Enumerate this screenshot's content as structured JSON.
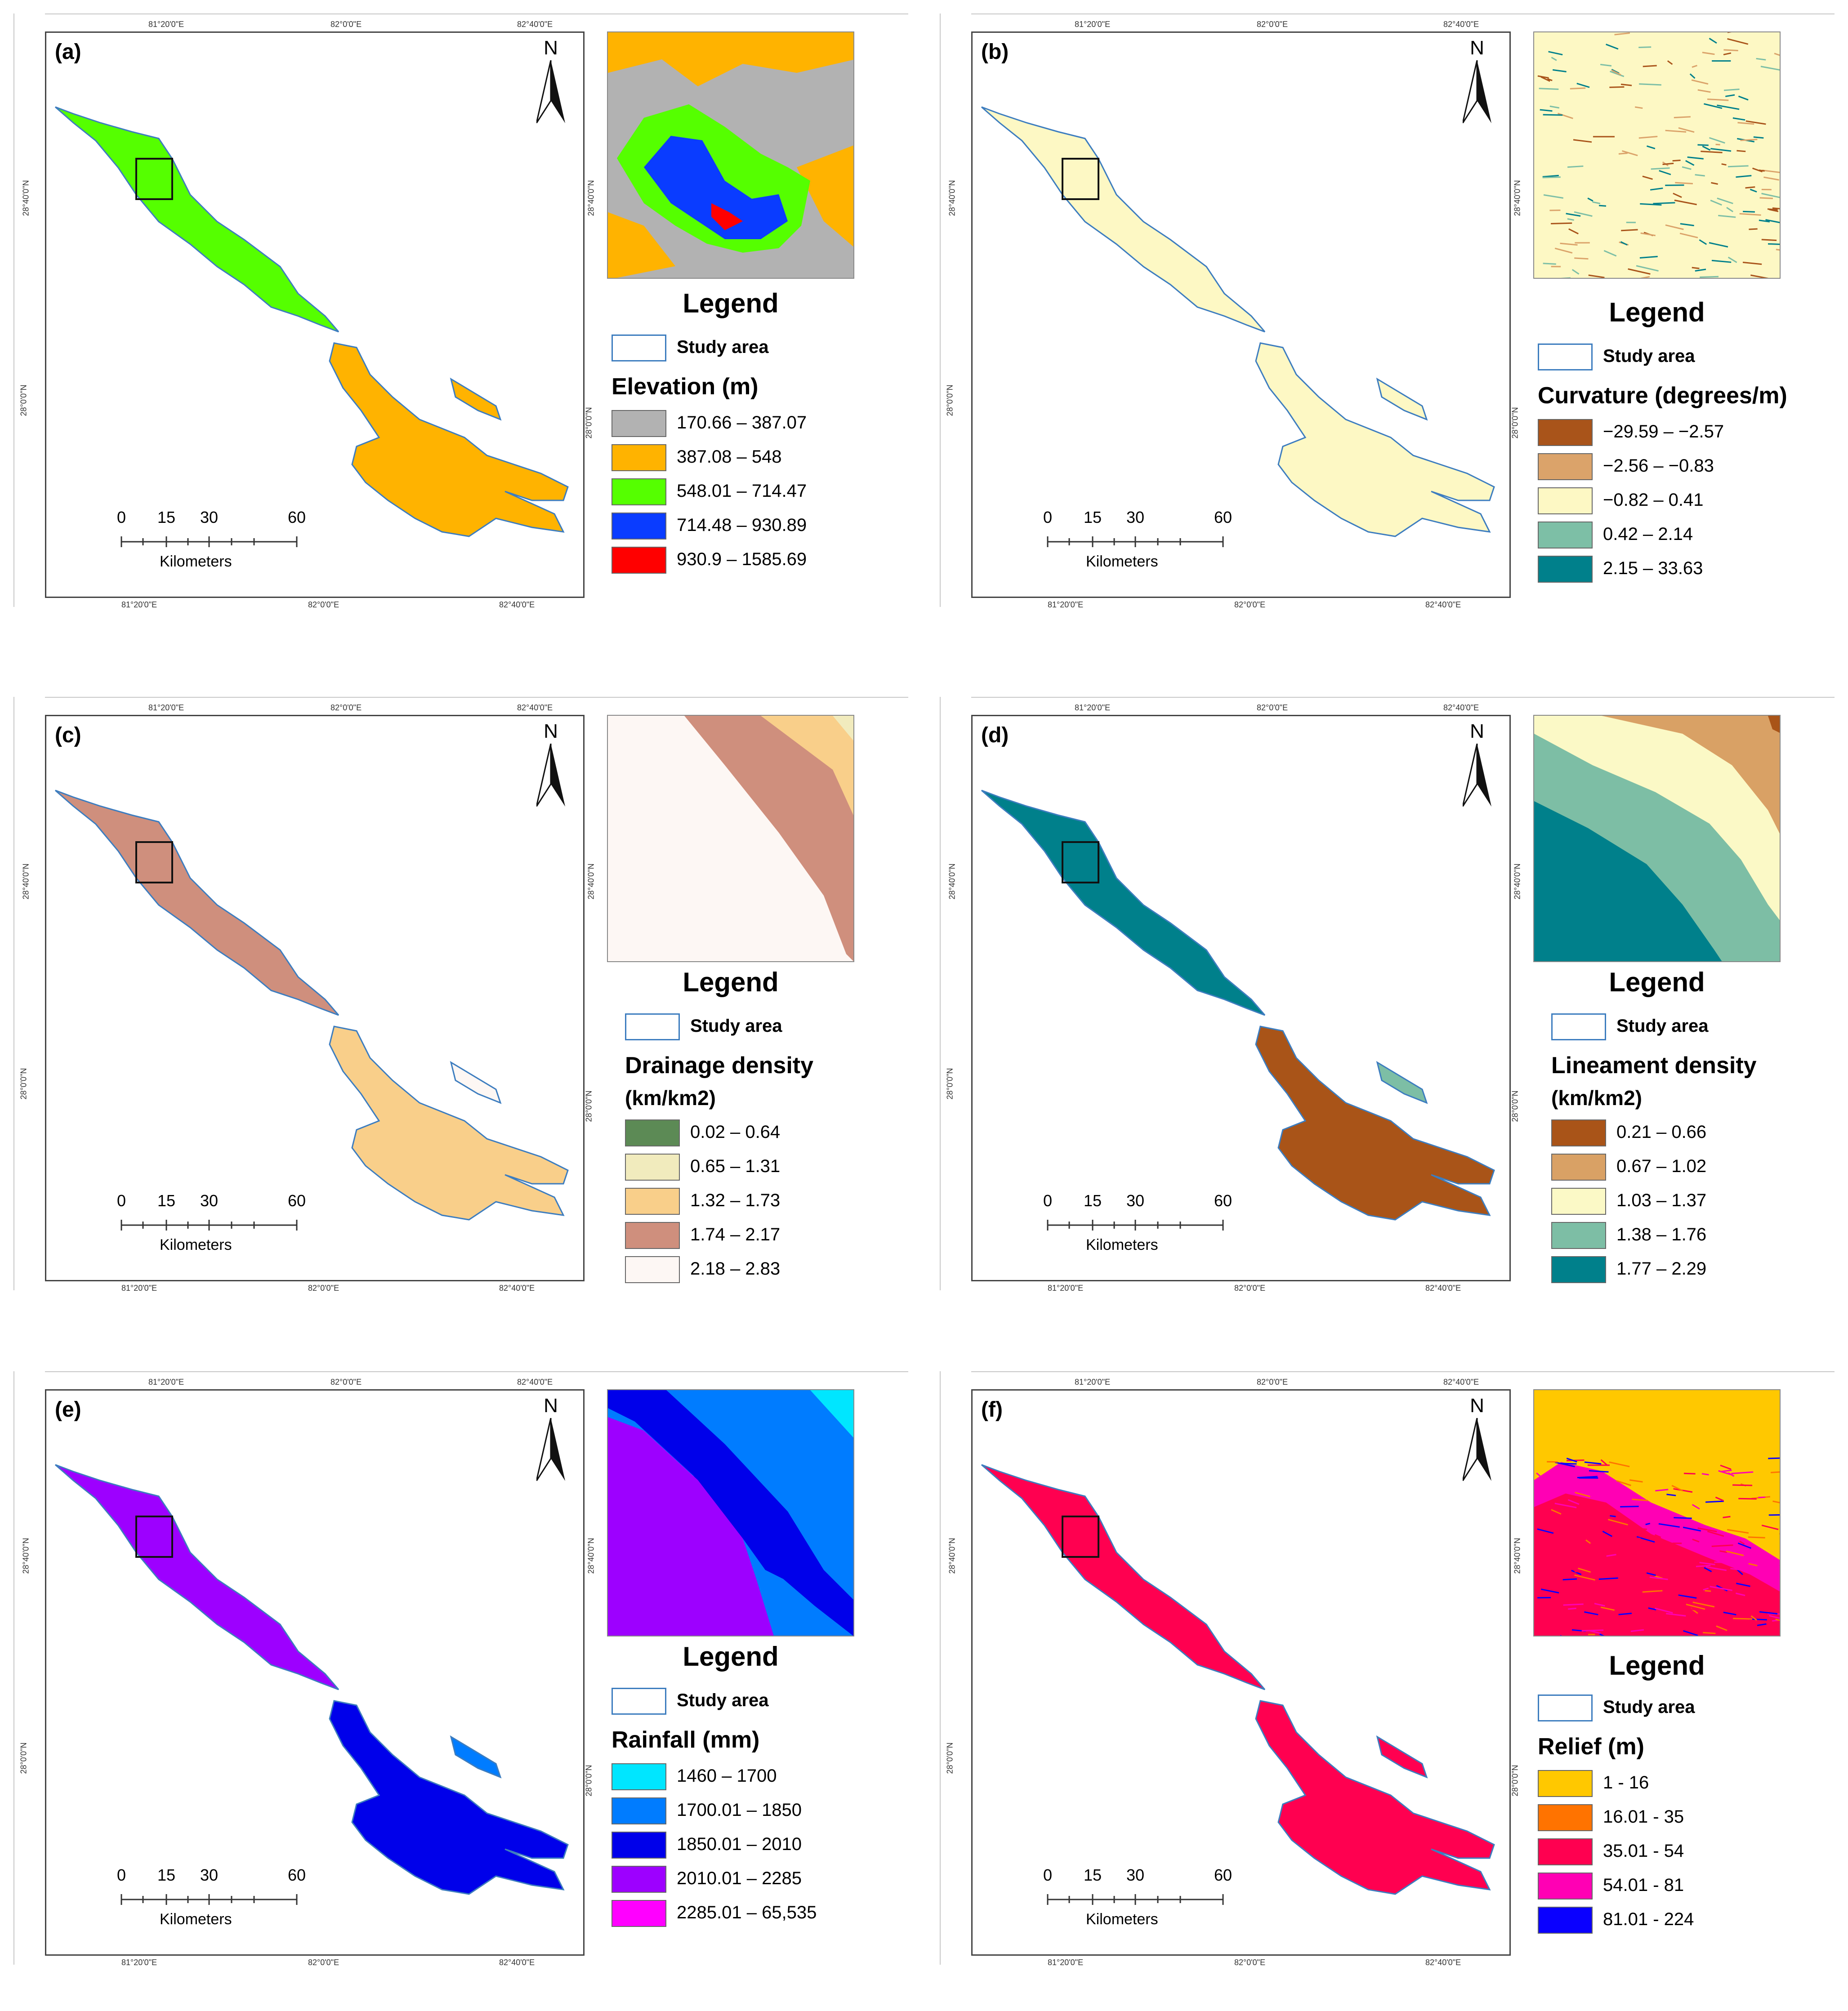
{
  "common": {
    "north": "N",
    "scale_ticks": [
      "0",
      "15",
      "30",
      "60"
    ],
    "scale_unit": "Kilometers",
    "lon_labels": [
      "81°20'0\"E",
      "82°0'0\"E",
      "82°40'0\"E"
    ],
    "lat_labels": [
      "28°40'0\"N",
      "28°0'0\"N"
    ],
    "legend_title": "Legend",
    "study_area": "Study area",
    "outline_color": "#3d7dbf"
  },
  "panels": [
    {
      "label": "(a)",
      "variable": "Elevation (m)",
      "classes": [
        {
          "range": "170.66 – 387.07",
          "color": "#b2b2b2"
        },
        {
          "range": "387.08 – 548",
          "color": "#ffb300"
        },
        {
          "range": "548.01 – 714.47",
          "color": "#55ff00"
        },
        {
          "range": "714.48 – 930.89",
          "color": "#0a3cff"
        },
        {
          "range": "930.9 – 1585.69",
          "color": "#ff0000"
        }
      ]
    },
    {
      "label": "(b)",
      "variable": "Curvature (degrees/m)",
      "classes": [
        {
          "range": "−29.59 – −2.57",
          "color": "#a9541a"
        },
        {
          "range": "−2.56 – −0.83",
          "color": "#dba36a"
        },
        {
          "range": "−0.82 – 0.41",
          "color": "#fdf8c4"
        },
        {
          "range": "0.42 – 2.14",
          "color": "#7dbfa6"
        },
        {
          "range": "2.15 – 33.63",
          "color": "#00808b"
        }
      ]
    },
    {
      "label": "(c)",
      "variable": "Drainage density",
      "variable_line2": "(km/km2)",
      "classes": [
        {
          "range": "0.02 – 0.64",
          "color": "#5c8a55"
        },
        {
          "range": "0.65 – 1.31",
          "color": "#f1ebbd"
        },
        {
          "range": "1.32 – 1.73",
          "color": "#f9cf8a"
        },
        {
          "range": "1.74 – 2.17",
          "color": "#cf8f7d"
        },
        {
          "range": "2.18 – 2.83",
          "color": "#fdf7f4"
        }
      ]
    },
    {
      "label": "(d)",
      "variable": "Lineament density",
      "variable_line2": "(km/km2)",
      "classes": [
        {
          "range": "0.21 – 0.66",
          "color": "#a95418"
        },
        {
          "range": "0.67 – 1.02",
          "color": "#d9a165"
        },
        {
          "range": "1.03 – 1.37",
          "color": "#fbf9c6"
        },
        {
          "range": "1.38 – 1.76",
          "color": "#7dbea5"
        },
        {
          "range": "1.77 – 2.29",
          "color": "#00808b"
        }
      ]
    },
    {
      "label": "(e)",
      "variable": "Rainfall (mm)",
      "classes": [
        {
          "range": "1460 – 1700",
          "color": "#00e6ff"
        },
        {
          "range": "1700.01 – 1850",
          "color": "#007cff"
        },
        {
          "range": "1850.01 – 2010",
          "color": "#0000ea"
        },
        {
          "range": "2010.01 – 2285",
          "color": "#9d00ff"
        },
        {
          "range": "2285.01 – 65,535",
          "color": "#ff00ff"
        }
      ]
    },
    {
      "label": "(f)",
      "variable": "Relief (m)",
      "classes": [
        {
          "range": "1 - 16",
          "color": "#ffc800"
        },
        {
          "range": "16.01 - 35",
          "color": "#ff7300"
        },
        {
          "range": "35.01 - 54",
          "color": "#ff0050"
        },
        {
          "range": "54.01 - 81",
          "color": "#ff00b4"
        },
        {
          "range": "81.01 - 224",
          "color": "#0a00ff"
        }
      ]
    }
  ]
}
